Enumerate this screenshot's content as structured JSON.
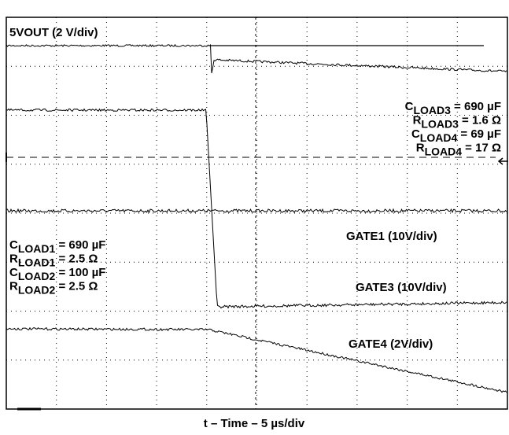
{
  "scope_labels": {
    "channel_top": "5VOUT (2 V/div)",
    "gate1": "GATE1 (10V/div)",
    "gate3": "GATE3 (10V/div)",
    "gate4": "GATE4 (2V/div)",
    "time_axis": "t – Time – 5 µs/div"
  },
  "right_notes": [
    {
      "symbol": "C",
      "sub": "LOAD3",
      "rest": " = 690 µF"
    },
    {
      "symbol": "R",
      "sub": "LOAD3",
      "rest": " = 1.6 Ω"
    },
    {
      "symbol": "C",
      "sub": "LOAD4",
      "rest": " = 69 µF"
    },
    {
      "symbol": "R",
      "sub": "LOAD4",
      "rest": " = 17 Ω"
    }
  ],
  "left_notes": [
    {
      "symbol": "C",
      "sub": "LOAD1",
      "rest": " = 690 µF"
    },
    {
      "symbol": "R",
      "sub": "LOAD1",
      "rest": " = 2.5 Ω"
    },
    {
      "symbol": "C",
      "sub": "LOAD2",
      "rest": " = 100 µF"
    },
    {
      "symbol": "R",
      "sub": "LOAD2",
      "rest": " = 2.5 Ω"
    }
  ]
}
